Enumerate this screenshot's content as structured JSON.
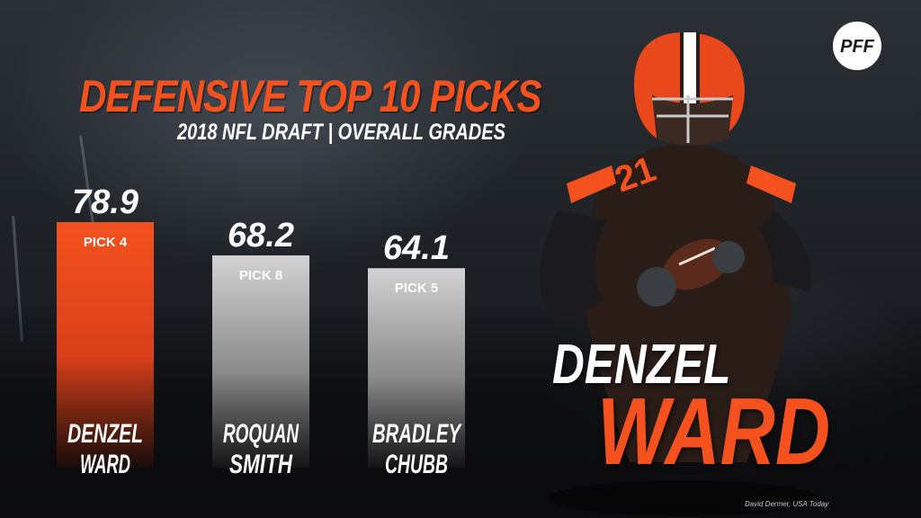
{
  "header": {
    "title": "DEFENSIVE TOP 10 PICKS",
    "subtitle": "2018 NFL DRAFT | OVERALL GRADES"
  },
  "logo": {
    "text": "PFF"
  },
  "colors": {
    "accent": "#f4511e",
    "gray_bar": "#c8c8c8",
    "text": "#ffffff"
  },
  "chart_data": {
    "type": "bar",
    "categories": [
      "DENZEL WARD",
      "ROQUAN SMITH",
      "BRADLEY CHUBB"
    ],
    "category_lines": [
      [
        "DENZEL",
        "WARD"
      ],
      [
        "ROQUAN",
        "SMITH"
      ],
      [
        "BRADLEY",
        "CHUBB"
      ]
    ],
    "values": [
      78.9,
      68.2,
      64.1
    ],
    "value_labels": [
      "78.9",
      "68.2",
      "64.1"
    ],
    "picks": [
      "PICK 4",
      "PICK 8",
      "PICK 5"
    ],
    "highlight": [
      true,
      false,
      false
    ],
    "title": "DEFENSIVE TOP 10 PICKS",
    "subtitle": "2018 NFL DRAFT | OVERALL GRADES",
    "xlabel": "",
    "ylabel": "",
    "ylim": [
      0,
      100
    ],
    "grid": false,
    "legend": "none"
  },
  "featured_player": {
    "first_name": "DENZEL",
    "last_name": "WARD",
    "jersey_number": "21",
    "helmet_icon": "football-helmet-icon"
  },
  "photo_credit": "David Dermer, USA Today"
}
